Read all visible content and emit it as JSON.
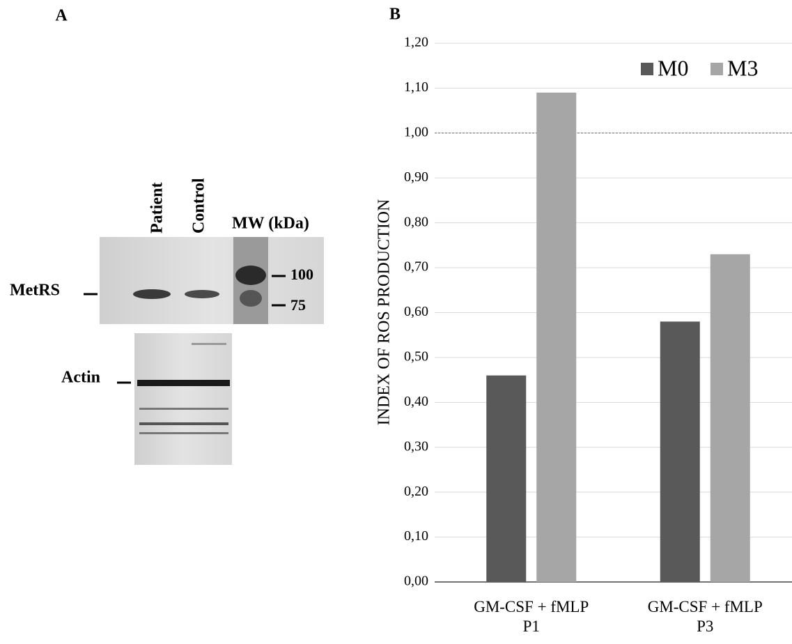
{
  "panel_a": {
    "label": "A",
    "lanes": [
      "Patient",
      "Control"
    ],
    "mw_header": "MW (kDa)",
    "markers": [
      "100",
      "75"
    ],
    "bands": [
      "MetRS",
      "Actin"
    ]
  },
  "chart_data": {
    "type": "bar",
    "panel_label": "B",
    "y_label": "INDEX OF ROS PRODUCTION",
    "categories": [
      "GM-CSF + fMLP\nP1",
      "GM-CSF + fMLP\nP3"
    ],
    "series": [
      {
        "name": "M0",
        "color": "#595959",
        "values": [
          0.46,
          0.58
        ]
      },
      {
        "name": "M3",
        "color": "#a6a6a6",
        "values": [
          1.09,
          0.73
        ]
      }
    ],
    "ylim": [
      0,
      1.2
    ],
    "yticks": [
      {
        "value": 0,
        "label": "0,00"
      },
      {
        "value": 0.1,
        "label": "0,10"
      },
      {
        "value": 0.2,
        "label": "0,20"
      },
      {
        "value": 0.3,
        "label": "0,30"
      },
      {
        "value": 0.4,
        "label": "0,40"
      },
      {
        "value": 0.5,
        "label": "0,50"
      },
      {
        "value": 0.6,
        "label": "0,60"
      },
      {
        "value": 0.7,
        "label": "0,70"
      },
      {
        "value": 0.8,
        "label": "0,80"
      },
      {
        "value": 0.9,
        "label": "0,90"
      },
      {
        "value": 1,
        "label": "1,00"
      },
      {
        "value": 1.1,
        "label": "1,10"
      },
      {
        "value": 1.2,
        "label": "1,20"
      }
    ],
    "grid": true,
    "reference_line": 1,
    "legend": "top-right"
  }
}
